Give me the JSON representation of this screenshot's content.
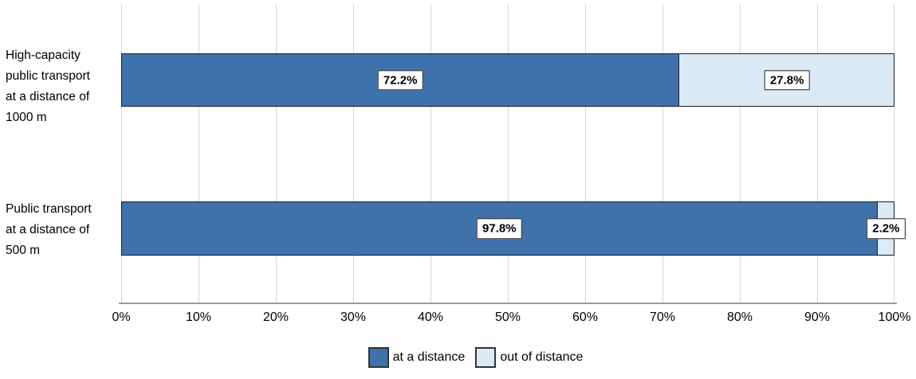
{
  "chart_data": {
    "type": "bar",
    "orientation": "horizontal",
    "stacked": true,
    "title": "",
    "categories": [
      "High-capacity\npublic transport\nat a distance of\n1000 m",
      "Public transport\nat a distance of\n500 m"
    ],
    "series": [
      {
        "name": "at a distance",
        "color": "#3F72AB",
        "values": [
          72.2,
          97.8
        ]
      },
      {
        "name": "out of distance",
        "color": "#DCE9F6",
        "values": [
          27.8,
          2.2
        ]
      }
    ],
    "bar_value_labels": [
      [
        "72.2%",
        "27.8%"
      ],
      [
        "97.8%",
        "2.2%"
      ]
    ],
    "x_ticks": [
      "0%",
      "10%",
      "20%",
      "30%",
      "40%",
      "50%",
      "60%",
      "70%",
      "80%",
      "90%",
      "100%"
    ],
    "xlim": [
      0,
      100
    ],
    "grid": true,
    "legend_position": "bottom",
    "legend": [
      "at a distance",
      "out of distance"
    ]
  },
  "style": {
    "series_colors": [
      "#3F72AB",
      "#DCE9F6"
    ],
    "gridline_color": "#D4D4D4",
    "axis_line_color": "#9B9B9B",
    "bar_border_color": "#1C1C1C",
    "value_label_bg": "#FFFFFF",
    "value_label_border": "#262626"
  }
}
